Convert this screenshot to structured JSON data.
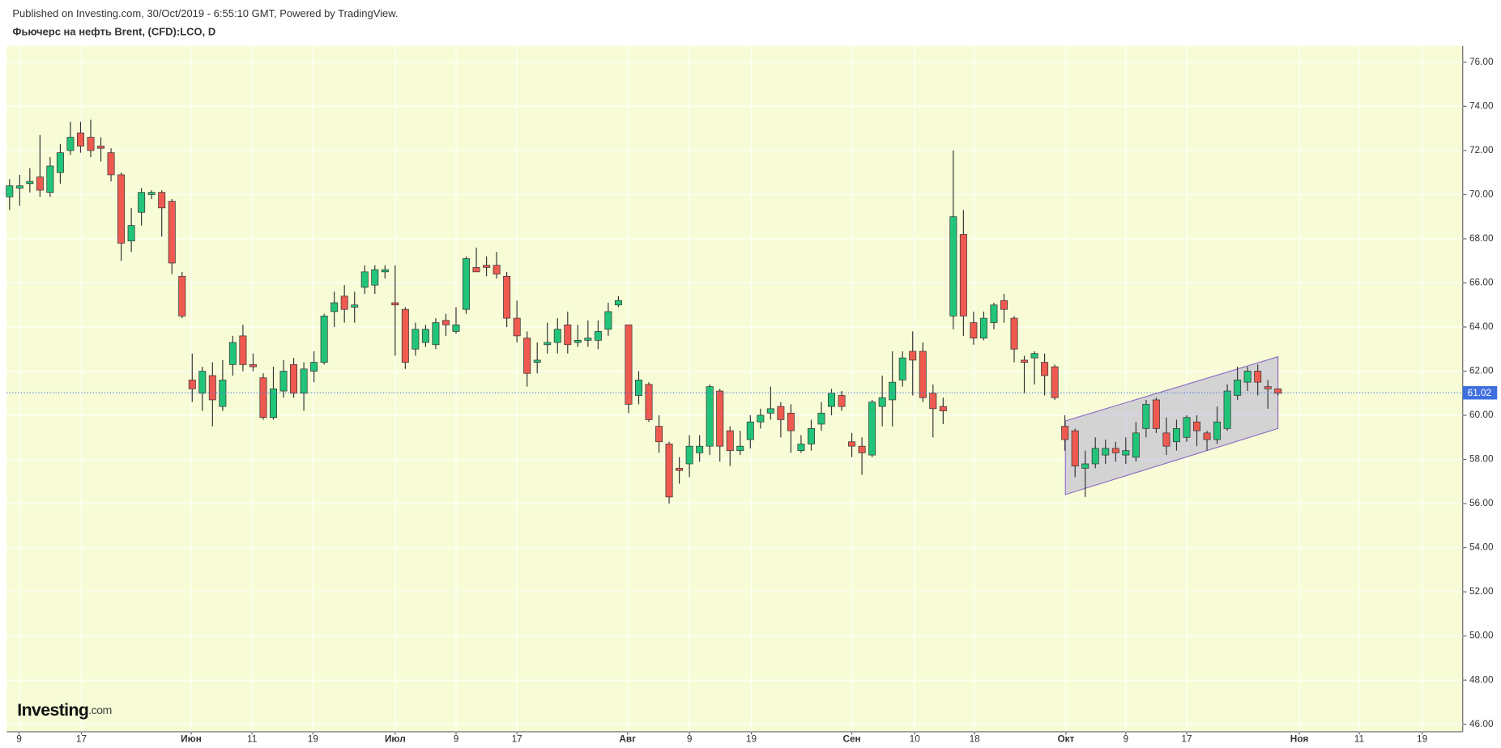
{
  "source": "Published on Investing.com, 30/Oct/2019 - 6:55:10 GMT, Powered by TradingView.",
  "logo": "Investing",
  "logo_suffix": ".com",
  "chart_data": {
    "type": "candlestick",
    "title": "Фьючерс на нефть Brent, (CFD):LCO, D",
    "up_color": "#22c47a",
    "down_color": "#ef5a50",
    "open": [
      69.9,
      70.3,
      70.5,
      70.8,
      70.1,
      71.0,
      72.0,
      72.8,
      72.6,
      72.2,
      71.9,
      70.9,
      67.9,
      69.2,
      70.0,
      70.1,
      69.7,
      66.3,
      61.6,
      61.0,
      61.8,
      60.4,
      62.3,
      63.6,
      62.3,
      61.7,
      59.9,
      61.1,
      62.3,
      61.0,
      62.0,
      62.4,
      64.7,
      65.4,
      64.9,
      65.8,
      65.9,
      66.5,
      65.1,
      64.8,
      63.0,
      63.3,
      63.2,
      64.3,
      63.8,
      64.8,
      66.7,
      66.8,
      66.8,
      66.3,
      64.4,
      63.5,
      62.4,
      63.2,
      63.3,
      64.1,
      63.3,
      63.4,
      63.4,
      63.9,
      65.0,
      64.1,
      60.9,
      61.4,
      59.5,
      58.7,
      57.6,
      57.8,
      58.3,
      58.6,
      61.1,
      59.3,
      58.4,
      58.9,
      59.7,
      60.1,
      60.4,
      60.1,
      58.4,
      58.7,
      59.6,
      60.4,
      60.9,
      58.8,
      58.6,
      58.2,
      60.4,
      60.7,
      61.6,
      62.9,
      62.9,
      61.0,
      60.4,
      64.5,
      68.2,
      64.2,
      63.5,
      64.2,
      65.2,
      64.4,
      62.5,
      62.6,
      62.4,
      62.2,
      59.5,
      59.3,
      57.6,
      57.8,
      58.2,
      58.5,
      58.2,
      58.1,
      59.4,
      60.7,
      59.2,
      58.8,
      59.0,
      59.7,
      59.2,
      58.9,
      59.4,
      60.9,
      61.5,
      62.0,
      61.3,
      61.2
    ],
    "high": [
      70.7,
      70.9,
      71.2,
      72.7,
      71.7,
      72.3,
      73.3,
      73.3,
      73.4,
      72.6,
      72.1,
      71.0,
      69.4,
      70.3,
      70.2,
      70.2,
      69.8,
      66.5,
      62.8,
      62.2,
      62.4,
      62.5,
      63.6,
      64.1,
      62.8,
      61.9,
      62.2,
      62.5,
      62.6,
      62.4,
      62.9,
      64.6,
      65.6,
      65.9,
      65.6,
      66.8,
      66.8,
      66.8,
      66.8,
      64.9,
      64.2,
      64.1,
      64.4,
      64.6,
      64.9,
      67.2,
      67.6,
      67.2,
      67.4,
      66.5,
      65.2,
      63.8,
      63.3,
      64.2,
      64.4,
      64.7,
      64.1,
      64.3,
      64.3,
      65.1,
      65.4,
      64.1,
      62.0,
      61.5,
      60.0,
      58.8,
      58.1,
      59.1,
      59.1,
      61.4,
      61.2,
      59.5,
      59.3,
      60.0,
      60.3,
      61.3,
      60.6,
      60.5,
      59.1,
      59.8,
      60.6,
      61.2,
      61.1,
      59.2,
      59.0,
      60.7,
      61.8,
      62.9,
      62.9,
      63.8,
      63.3,
      61.4,
      60.8,
      72.0,
      69.3,
      64.7,
      64.7,
      65.1,
      65.5,
      64.5,
      62.7,
      62.9,
      62.8,
      62.3,
      60.0,
      59.4,
      58.4,
      59.0,
      58.9,
      58.8,
      59.0,
      59.7,
      60.7,
      60.8,
      59.9,
      59.8,
      60.0,
      60.0,
      59.3,
      60.4,
      61.4,
      62.2,
      62.2,
      62.3,
      61.6,
      61.2
    ],
    "low": [
      69.3,
      69.5,
      70.1,
      69.9,
      69.9,
      70.5,
      71.8,
      71.9,
      71.7,
      71.5,
      70.6,
      67.0,
      67.4,
      68.6,
      69.8,
      68.1,
      66.4,
      64.4,
      60.6,
      60.2,
      59.5,
      60.2,
      61.8,
      62.0,
      62.0,
      59.8,
      59.8,
      60.8,
      60.8,
      60.2,
      61.5,
      62.3,
      64.0,
      64.2,
      64.2,
      65.5,
      65.5,
      66.2,
      62.7,
      62.1,
      62.7,
      63.1,
      63.0,
      63.6,
      63.7,
      64.6,
      66.5,
      66.3,
      66.2,
      64.0,
      63.3,
      61.3,
      61.9,
      62.8,
      62.8,
      62.8,
      63.1,
      63.1,
      63.0,
      63.6,
      64.9,
      60.1,
      60.5,
      59.7,
      58.3,
      56.0,
      56.9,
      57.2,
      57.9,
      58.2,
      57.9,
      57.7,
      58.2,
      58.5,
      59.4,
      59.8,
      59.0,
      58.3,
      58.3,
      58.4,
      59.3,
      60.0,
      60.2,
      58.1,
      57.3,
      58.1,
      59.5,
      59.5,
      61.3,
      60.9,
      60.6,
      59.0,
      59.6,
      63.9,
      63.6,
      63.2,
      63.4,
      63.9,
      64.2,
      62.4,
      61.0,
      61.4,
      60.9,
      60.7,
      58.4,
      57.2,
      56.3,
      57.6,
      57.8,
      57.9,
      57.8,
      57.9,
      59.0,
      59.2,
      58.2,
      58.4,
      58.8,
      58.6,
      58.4,
      58.7,
      59.3,
      60.7,
      61.1,
      60.9,
      60.3,
      60.9
    ],
    "close": [
      70.4,
      70.4,
      70.6,
      70.2,
      71.3,
      71.9,
      72.6,
      72.2,
      72.0,
      72.1,
      70.9,
      67.8,
      68.6,
      70.1,
      70.1,
      69.4,
      66.9,
      64.5,
      61.2,
      62.0,
      60.7,
      61.6,
      63.3,
      62.3,
      62.2,
      59.9,
      61.2,
      62.0,
      61.0,
      62.1,
      62.4,
      64.5,
      65.1,
      64.8,
      65.0,
      66.5,
      66.6,
      66.6,
      65.0,
      62.4,
      63.9,
      63.9,
      64.2,
      64.1,
      64.1,
      67.1,
      66.5,
      66.7,
      66.4,
      64.4,
      63.6,
      61.9,
      62.5,
      63.3,
      63.9,
      63.2,
      63.4,
      63.5,
      63.8,
      64.7,
      65.2,
      60.5,
      61.6,
      59.8,
      58.8,
      56.3,
      57.5,
      58.6,
      58.6,
      61.3,
      58.6,
      58.4,
      58.6,
      59.7,
      60.0,
      60.3,
      59.8,
      59.3,
      58.7,
      59.4,
      60.1,
      61.0,
      60.4,
      58.6,
      58.3,
      60.6,
      60.8,
      61.5,
      62.6,
      62.5,
      60.8,
      60.3,
      60.2,
      69.0,
      64.5,
      63.5,
      64.4,
      65.0,
      64.8,
      63.0,
      62.4,
      62.8,
      61.8,
      60.8,
      58.9,
      57.7,
      57.8,
      58.5,
      58.5,
      58.3,
      58.4,
      59.2,
      60.5,
      59.4,
      58.6,
      59.4,
      59.9,
      59.3,
      58.9,
      59.7,
      61.1,
      61.6,
      62.0,
      61.5,
      61.2,
      61.0
    ],
    "last_price": 61.02,
    "last_price_color": "#3f6fe0",
    "ylim": [
      45.66,
      76.74
    ],
    "yticks": [
      {
        "value": 46,
        "label": "46.00"
      },
      {
        "value": 48,
        "label": "48.00"
      },
      {
        "value": 50,
        "label": "50.00"
      },
      {
        "value": 52,
        "label": "52.00"
      },
      {
        "value": 54,
        "label": "54.00"
      },
      {
        "value": 56,
        "label": "56.00"
      },
      {
        "value": 58,
        "label": "58.00"
      },
      {
        "value": 60,
        "label": "60.00"
      },
      {
        "value": 62,
        "label": "62.00"
      },
      {
        "value": 64,
        "label": "64.00"
      },
      {
        "value": 66,
        "label": "66.00"
      },
      {
        "value": 68,
        "label": "68.00"
      },
      {
        "value": 70,
        "label": "70.00"
      },
      {
        "value": 72,
        "label": "72.00"
      },
      {
        "value": 74,
        "label": "74.00"
      },
      {
        "value": 76,
        "label": "76.00"
      }
    ],
    "xlim": [
      -0.28,
      143.2
    ],
    "xticks": [
      {
        "value": 0.94,
        "label": "9"
      },
      {
        "value": 7.08,
        "label": "17"
      },
      {
        "value": 17.9,
        "label": "Июн"
      },
      {
        "value": 23.9,
        "label": "11"
      },
      {
        "value": 29.9,
        "label": "19"
      },
      {
        "value": 38.0,
        "label": "Июл"
      },
      {
        "value": 44.0,
        "label": "9"
      },
      {
        "value": 50.0,
        "label": "17"
      },
      {
        "value": 60.9,
        "label": "Авг"
      },
      {
        "value": 67.0,
        "label": "9"
      },
      {
        "value": 73.1,
        "label": "19"
      },
      {
        "value": 83.0,
        "label": "Сен"
      },
      {
        "value": 89.2,
        "label": "10"
      },
      {
        "value": 95.1,
        "label": "18"
      },
      {
        "value": 104.1,
        "label": "Окт"
      },
      {
        "value": 110.0,
        "label": "9"
      },
      {
        "value": 116.0,
        "label": "17"
      },
      {
        "value": 127.1,
        "label": "Ноя"
      },
      {
        "value": 133.0,
        "label": "11"
      },
      {
        "value": 139.2,
        "label": "19"
      }
    ],
    "grid": true
  }
}
